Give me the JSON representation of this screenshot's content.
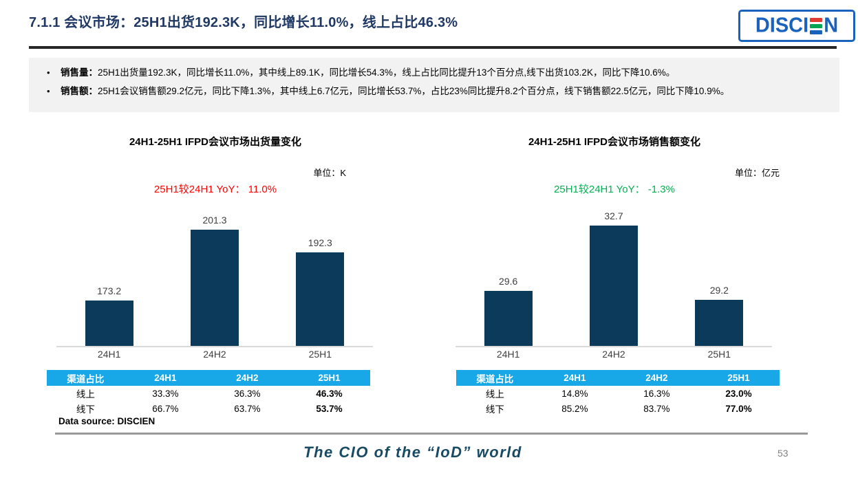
{
  "page": {
    "title": "7.1.1 会议市场：25H1出货192.3K，同比增长11.0%，线上占比46.3%",
    "footer_slogan": "The CIO of the “IoD” world",
    "page_number": "53",
    "data_source": "Data source: DISCIEN"
  },
  "logo": {
    "name": "DISCIEN",
    "text_left": "DISCI",
    "text_right": "N",
    "border_color": "#1a63bd",
    "e_bar_colors": [
      "#e03c31",
      "#00a651",
      "#1a63bd"
    ]
  },
  "summary": {
    "bullet_char": "•",
    "bullets": [
      {
        "label": "销售量：",
        "text": "25H1出货量192.3K，同比增长11.0%，其中线上89.1K，同比增长54.3%，线上占比同比提升13个百分点,线下出货103.2K，同比下降10.6%。"
      },
      {
        "label": "销售额：",
        "text": "25H1会议销售额29.2亿元，同比下降1.3%，其中线上6.7亿元，同比增长53.7%，占比23%同比提升8.2个百分点，线下销售额22.5亿元，同比下降10.9%。"
      }
    ]
  },
  "colors": {
    "title_blue": "#1f3864",
    "bar_navy": "#0b3a5a",
    "table_header_cyan": "#18a8e8",
    "yoy_red": "#ff0000",
    "yoy_green": "#00b050",
    "summary_bg": "#f2f2f2",
    "footer_teal": "#174a63"
  },
  "chart_data": [
    {
      "type": "bar",
      "title": "24H1-25H1 IFPD会议市场出货量变化",
      "unit_label": "单位：K",
      "yoy_label": "25H1较24H1 YoY： 11.0%",
      "yoy_color": "#ff0000",
      "categories": [
        "24H1",
        "24H2",
        "25H1"
      ],
      "values": [
        173.2,
        201.3,
        192.3
      ],
      "ylim": [
        155,
        208
      ],
      "bar_color": "#0b3a5a",
      "legend_position": "none",
      "grid": false,
      "table": {
        "header": [
          "渠道占比",
          "24H1",
          "24H2",
          "25H1"
        ],
        "rows": [
          [
            "线上",
            "33.3%",
            "36.3%",
            "46.3%"
          ],
          [
            "线下",
            "66.7%",
            "63.7%",
            "53.7%"
          ]
        ]
      }
    },
    {
      "type": "bar",
      "title": "24H1-25H1 IFPD会议市场销售额变化",
      "unit_label": "单位：亿元",
      "yoy_label": "25H1较24H1 YoY： -1.3%",
      "yoy_color": "#00b050",
      "categories": [
        "24H1",
        "24H2",
        "25H1"
      ],
      "values": [
        29.6,
        32.7,
        29.2
      ],
      "ylim": [
        27,
        33.3
      ],
      "bar_color": "#0b3a5a",
      "legend_position": "none",
      "grid": false,
      "table": {
        "header": [
          "渠道占比",
          "24H1",
          "24H2",
          "25H1"
        ],
        "rows": [
          [
            "线上",
            "14.8%",
            "16.3%",
            "23.0%"
          ],
          [
            "线下",
            "85.2%",
            "83.7%",
            "77.0%"
          ]
        ]
      }
    }
  ]
}
